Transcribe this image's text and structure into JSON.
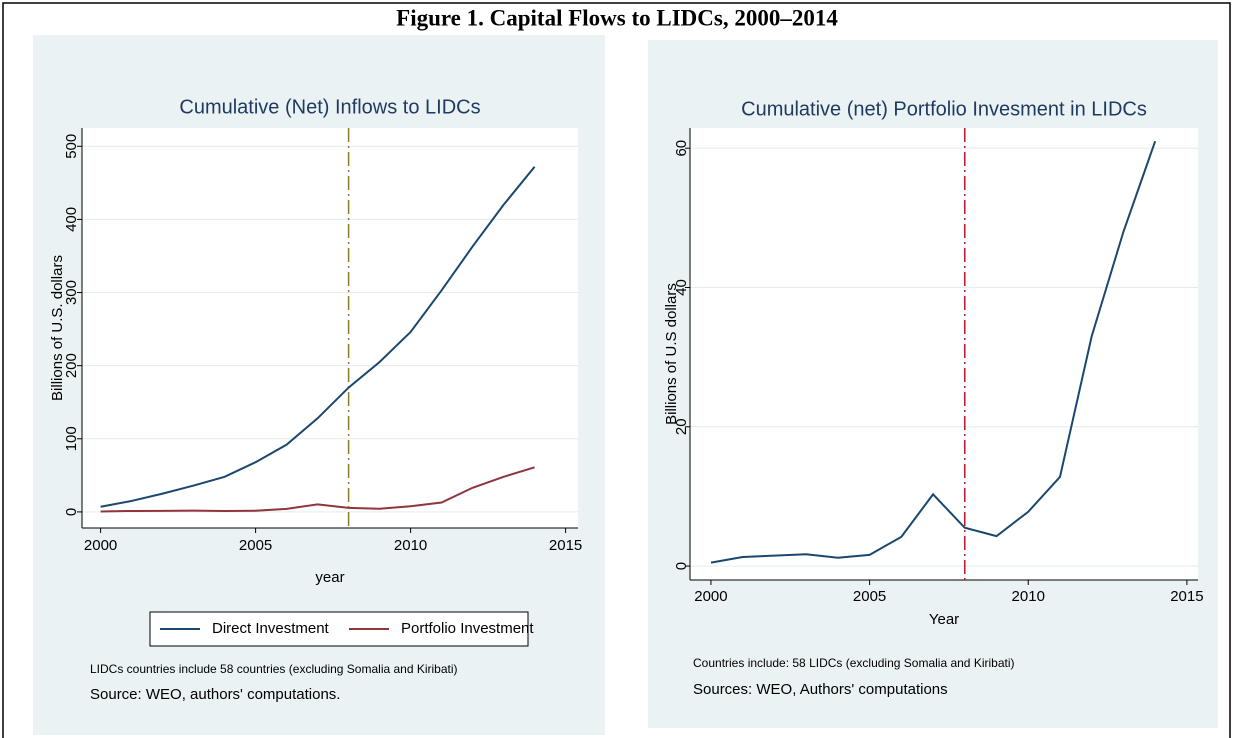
{
  "title": "Figure 1. Capital Flows to LIDCs, 2000–2014",
  "chart_data": [
    {
      "type": "line",
      "title": "Cumulative (Net) Inflows to LIDCs",
      "x_label": "year",
      "y_label": "Billions of U.S. dollars",
      "x": [
        2000,
        2001,
        2002,
        2003,
        2004,
        2005,
        2006,
        2007,
        2008,
        2009,
        2010,
        2011,
        2012,
        2013,
        2014
      ],
      "series": [
        {
          "name": "Direct Investment",
          "color": "#1a476f",
          "values": [
            7,
            15,
            25,
            36,
            48,
            68,
            92,
            128,
            170,
            205,
            246,
            303,
            363,
            420,
            472
          ]
        },
        {
          "name": "Portfolio Investment",
          "color": "#90353b",
          "values": [
            0.5,
            1.3,
            1.5,
            1.7,
            1.2,
            1.6,
            4.2,
            10.3,
            5.5,
            4.3,
            7.8,
            12.8,
            33,
            48,
            61
          ]
        }
      ],
      "xlim": [
        1999.4,
        2015.4
      ],
      "ylim": [
        -22,
        525
      ],
      "xticks": [
        2000,
        2005,
        2010,
        2015
      ],
      "yticks": [
        0,
        100,
        200,
        300,
        400,
        500
      ],
      "grid": true,
      "legend": "bottom",
      "vline": {
        "x": 2008,
        "color": "#8f7a2c"
      },
      "notes": [
        "LIDCs countries include 58 countries (excluding Somalia and Kiribati)",
        "Source: WEO, authors' computations."
      ]
    },
    {
      "type": "line",
      "title": "Cumulative (net) Portfolio Invesment in LIDCs",
      "x_label": "Year",
      "y_label": "Billions of U.S dollars",
      "x": [
        2000,
        2001,
        2002,
        2003,
        2004,
        2005,
        2006,
        2007,
        2008,
        2009,
        2010,
        2011,
        2012,
        2013,
        2014
      ],
      "series": [
        {
          "color": "#1a476f",
          "values": [
            0.5,
            1.3,
            1.5,
            1.7,
            1.2,
            1.6,
            4.2,
            10.3,
            5.5,
            4.3,
            7.8,
            12.8,
            33,
            48,
            61
          ]
        }
      ],
      "xlim": [
        1999.34,
        2015.35
      ],
      "ylim": [
        -2,
        62.9
      ],
      "xticks": [
        2000,
        2005,
        2010,
        2015
      ],
      "yticks": [
        0,
        20,
        40,
        60
      ],
      "grid": true,
      "vline": {
        "x": 2008,
        "color": "#c8102e"
      },
      "notes": [
        "Countries include: 58 LIDCs (excluding Somalia and Kiribati)",
        "Sources: WEO, Authors' computations"
      ]
    }
  ]
}
